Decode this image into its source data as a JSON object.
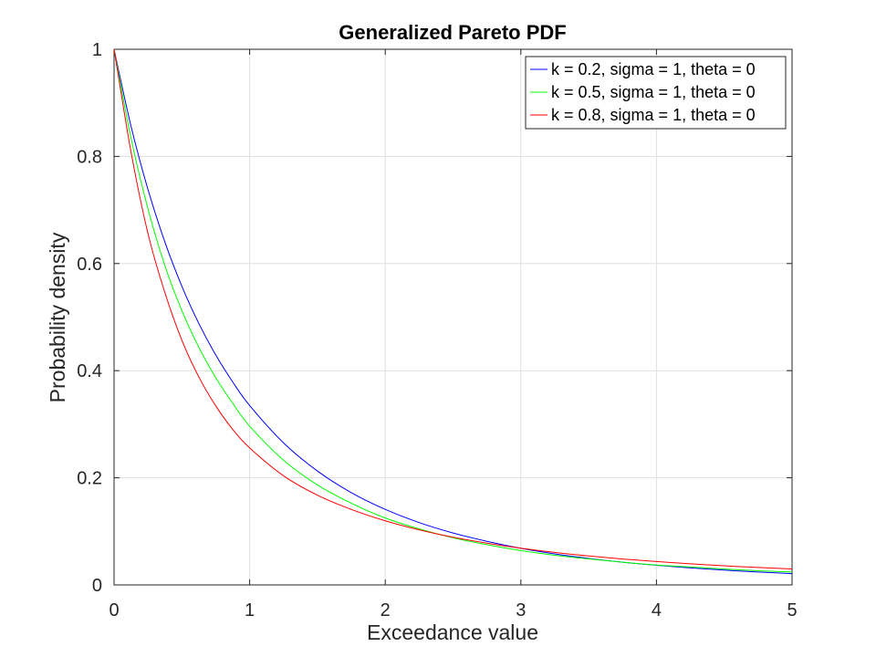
{
  "chart_data": {
    "type": "line",
    "title": "Generalized Pareto PDF",
    "xlabel": "Exceedance value",
    "ylabel": "Probability density",
    "xlim": [
      0,
      5
    ],
    "ylim": [
      0,
      1
    ],
    "xticks": [
      "0",
      "1",
      "2",
      "3",
      "4",
      "5"
    ],
    "yticks": [
      "0",
      "0.2",
      "0.4",
      "0.6",
      "0.8",
      "1"
    ],
    "grid": true,
    "legend_position": "top-right",
    "x": [
      0,
      0.125,
      0.25,
      0.375,
      0.5,
      0.625,
      0.75,
      0.875,
      1,
      1.25,
      1.5,
      1.75,
      2,
      2.25,
      2.5,
      2.75,
      3,
      3.25,
      3.5,
      3.75,
      4,
      4.25,
      4.5,
      4.75,
      5
    ],
    "series": [
      {
        "name": "k = 0.2, sigma = 1, theta = 0",
        "color": "#0000ff",
        "values": [
          1,
          0.8565,
          0.7383,
          0.64,
          0.5577,
          0.4882,
          0.4292,
          0.3788,
          0.3349,
          0.2652,
          0.2126,
          0.1722,
          0.141,
          0.1164,
          0.0969,
          0.0814,
          0.0684,
          0.058,
          0.0495,
          0.0424,
          0.0366,
          0.0318,
          0.0276,
          0.0241,
          0.0211
        ]
      },
      {
        "name": "k = 0.5, sigma = 1, theta = 0",
        "color": "#00ff00",
        "values": [
          1,
          0.8342,
          0.7023,
          0.596,
          0.512,
          0.4437,
          0.3868,
          0.3391,
          0.2963,
          0.2328,
          0.1866,
          0.1524,
          0.125,
          0.1046,
          0.088,
          0.0751,
          0.064,
          0.0554,
          0.0485,
          0.0424,
          0.037,
          0.0334,
          0.0296,
          0.0264,
          0.024
        ]
      },
      {
        "name": "k = 0.8, sigma = 1, theta = 0",
        "color": "#ff0000",
        "values": [
          1,
          0.8085,
          0.656,
          0.5456,
          0.4568,
          0.3883,
          0.3342,
          0.2904,
          0.2558,
          0.2037,
          0.1675,
          0.1409,
          0.1197,
          0.1028,
          0.089,
          0.078,
          0.0685,
          0.0606,
          0.054,
          0.0484,
          0.0436,
          0.0394,
          0.0357,
          0.0326,
          0.0298
        ]
      }
    ]
  }
}
